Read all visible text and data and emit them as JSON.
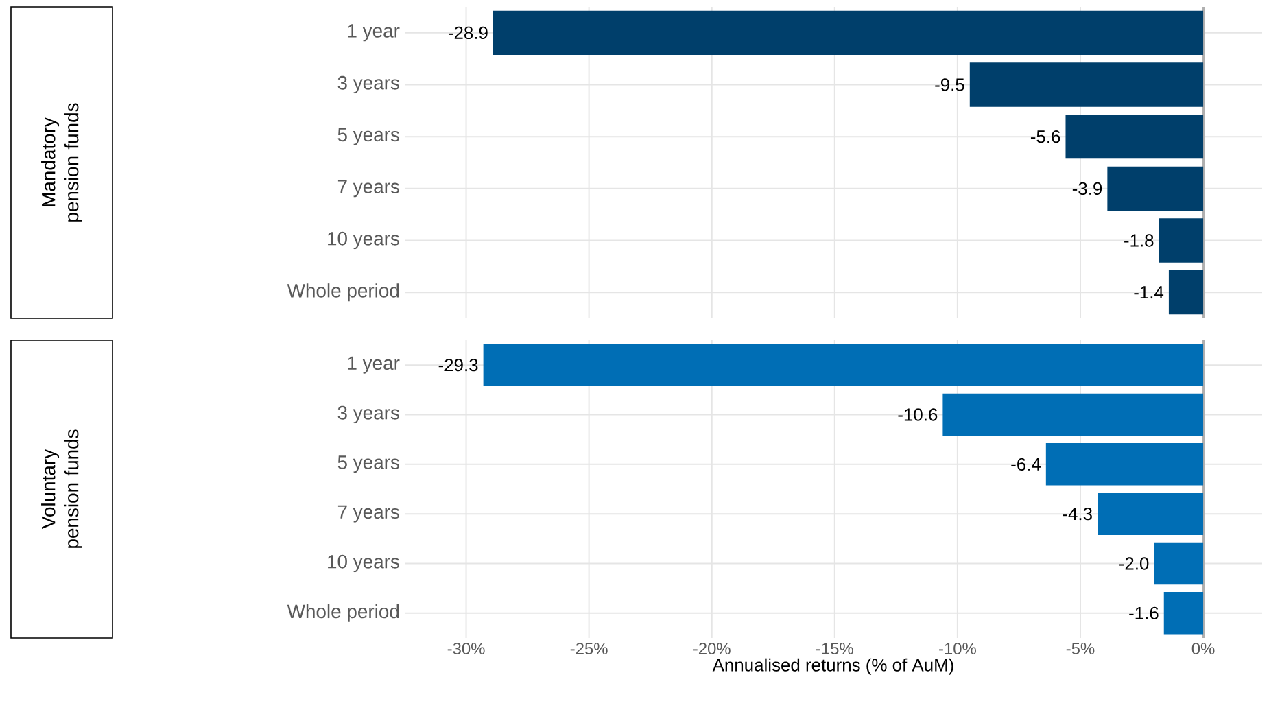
{
  "chart_data": [
    {
      "type": "bar",
      "orientation": "horizontal",
      "ylabel": "Mandatory pension funds",
      "categories": [
        "1 year",
        "3 years",
        "5 years",
        "7 years",
        "10 years",
        "Whole period"
      ],
      "values": [
        -28.9,
        -9.5,
        -5.6,
        -3.9,
        -1.8,
        -1.4
      ],
      "value_labels": [
        "-28.9",
        "-9.5",
        "-5.6",
        "-3.9",
        "-1.8",
        "-1.4"
      ],
      "color": "#003f6b",
      "xlim": [
        -32.5,
        2.4
      ],
      "xticks": [
        -30,
        -25,
        -20,
        -15,
        -10,
        -5,
        0
      ],
      "tick_labels": "y",
      "grid": true,
      "ref_lines": [
        {
          "axis": "x",
          "value": 0,
          "color": "#b0b0b0"
        }
      ]
    },
    {
      "type": "bar",
      "orientation": "horizontal",
      "ylabel": "Voluntary pension funds",
      "xlabel": "Annualised returns (% of AuM)",
      "categories": [
        "1 year",
        "3 years",
        "5 years",
        "7 years",
        "10 years",
        "Whole period"
      ],
      "values": [
        -29.3,
        -10.6,
        -6.4,
        -4.3,
        -2.0,
        -1.6
      ],
      "value_labels": [
        "-29.3",
        "-10.6",
        "-6.4",
        "-4.3",
        "-2.0",
        "-1.6"
      ],
      "color": "#006eb5",
      "xlim": [
        -32.5,
        2.4
      ],
      "xticks": [
        {
          "value": -30,
          "label": "-30%"
        },
        {
          "value": -25,
          "label": "-25%"
        },
        {
          "value": -20,
          "label": "-20%"
        },
        {
          "value": -15,
          "label": "-15%"
        },
        {
          "value": -10,
          "label": "-10%"
        },
        {
          "value": -5,
          "label": "-5%"
        },
        {
          "value": 0,
          "label": "0%"
        }
      ],
      "grid": true,
      "ref_lines": [
        {
          "axis": "x",
          "value": 0,
          "color": "#b0b0b0"
        }
      ]
    }
  ]
}
